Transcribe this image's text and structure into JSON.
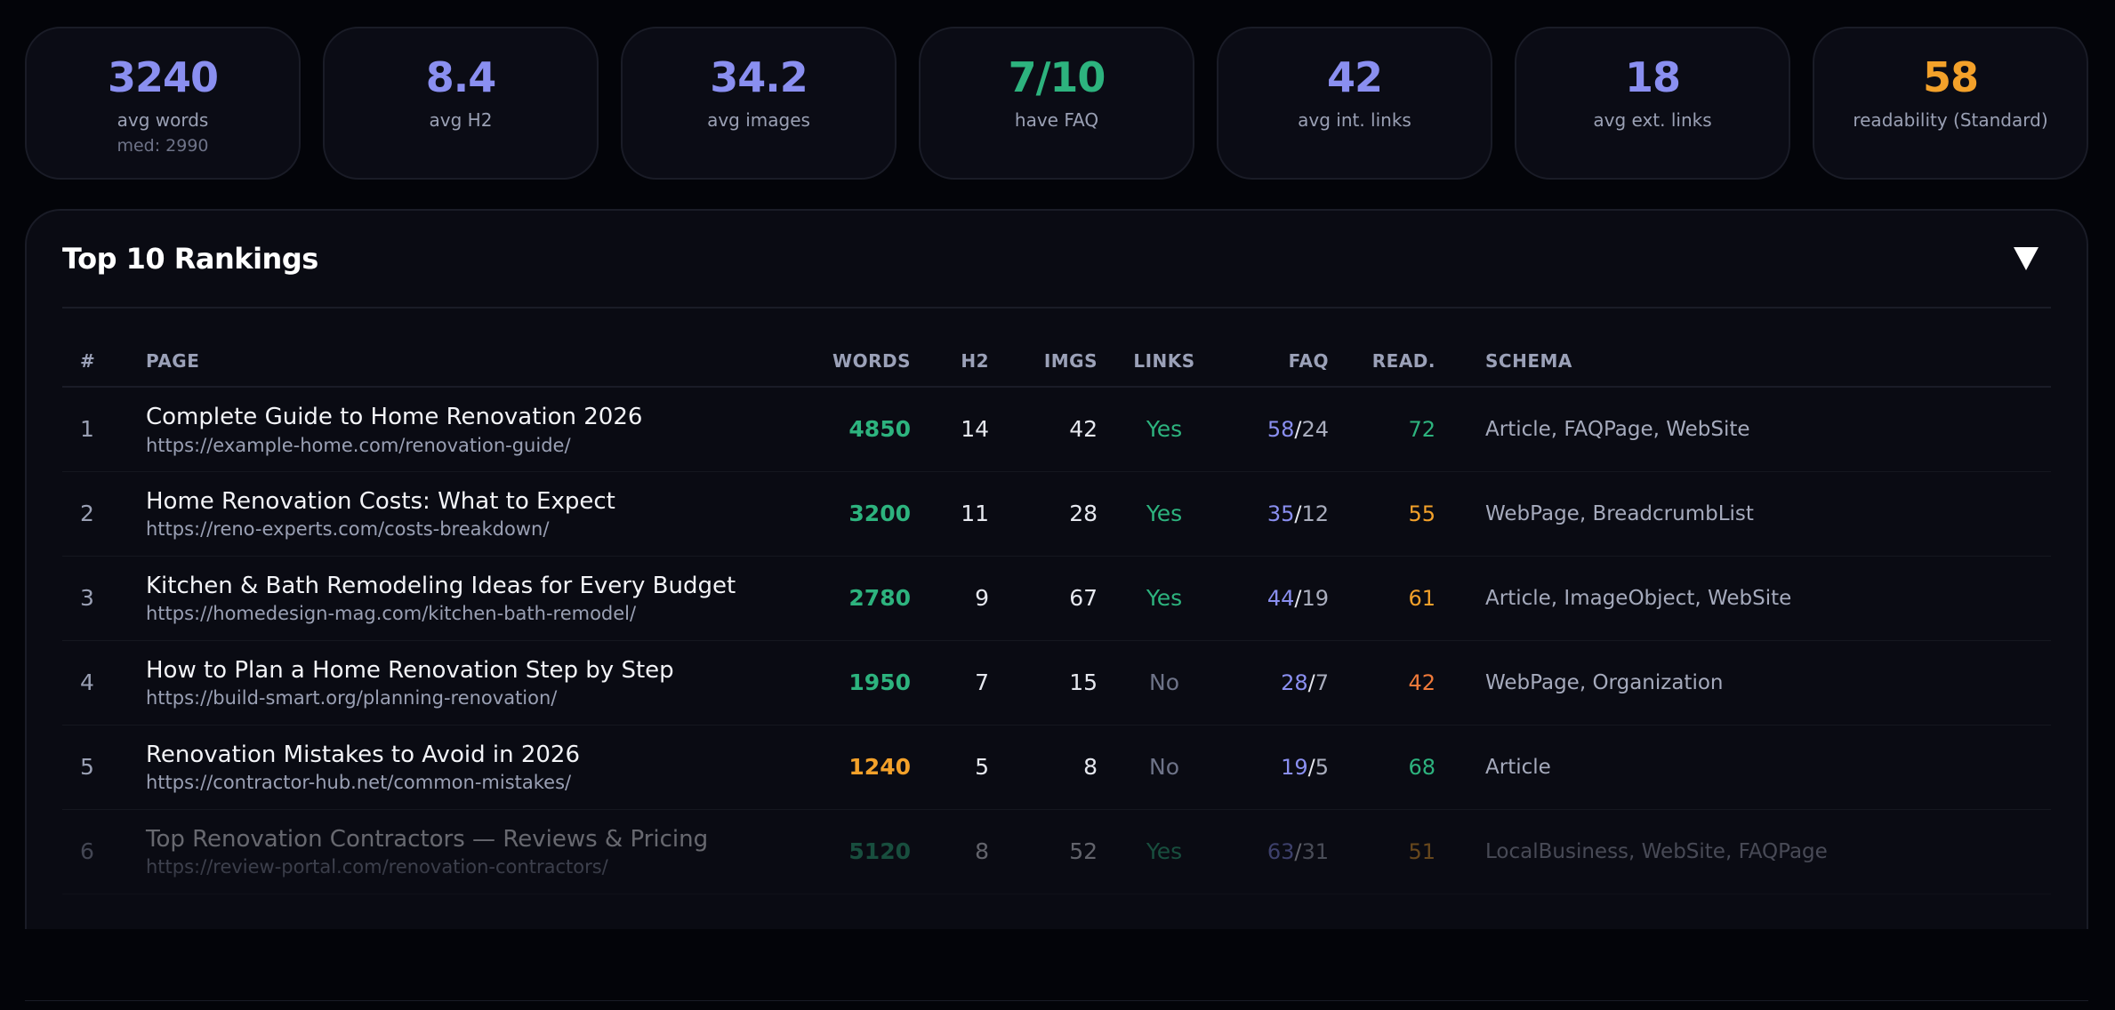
{
  "colors": {
    "accent": "#8a8ff0",
    "green": "#2db37e",
    "orange": "#f3a12a",
    "orange_red": "#f07a3a",
    "muted": "#6e7388"
  },
  "stats": [
    {
      "value": "3240",
      "label": "avg words",
      "sub": "med: 2990",
      "color": "#8a8ff0"
    },
    {
      "value": "8.4",
      "label": "avg H2",
      "sub": "",
      "color": "#8a8ff0"
    },
    {
      "value": "34.2",
      "label": "avg images",
      "sub": "",
      "color": "#8a8ff0"
    },
    {
      "value": "7/10",
      "label": "have FAQ",
      "sub": "",
      "color": "#2db37e"
    },
    {
      "value": "42",
      "label": "avg int. links",
      "sub": "",
      "color": "#8a8ff0"
    },
    {
      "value": "18",
      "label": "avg ext. links",
      "sub": "",
      "color": "#8a8ff0"
    },
    {
      "value": "58",
      "label": "readability (Standard)",
      "sub": "",
      "color": "#f3a12a"
    }
  ],
  "rankings": {
    "title": "Top 10 Rankings",
    "toggle_icon": "caret-down-icon",
    "columns": [
      "#",
      "PAGE",
      "WORDS",
      "H2",
      "IMGS",
      "LINKS",
      "FAQ",
      "READ.",
      "SCHEMA"
    ],
    "rows": [
      {
        "rank": "1",
        "title": "Complete Guide to Home Renovation 2026",
        "url": "https://example-home.com/renovation-guide/",
        "words": "4850",
        "words_color": "#2db37e",
        "h2": "14",
        "imgs": "42",
        "links": "Yes",
        "links_color": "#2db37e",
        "faq_a": "58",
        "faq_b": "24",
        "read": "72",
        "read_color": "#2db37e",
        "schema": "Article, FAQPage, WebSite"
      },
      {
        "rank": "2",
        "title": "Home Renovation Costs: What to Expect",
        "url": "https://reno-experts.com/costs-breakdown/",
        "words": "3200",
        "words_color": "#2db37e",
        "h2": "11",
        "imgs": "28",
        "links": "Yes",
        "links_color": "#2db37e",
        "faq_a": "35",
        "faq_b": "12",
        "read": "55",
        "read_color": "#f3a12a",
        "schema": "WebPage, BreadcrumbList"
      },
      {
        "rank": "3",
        "title": "Kitchen & Bath Remodeling Ideas for Every Budget",
        "url": "https://homedesign-mag.com/kitchen-bath-remodel/",
        "words": "2780",
        "words_color": "#2db37e",
        "h2": "9",
        "imgs": "67",
        "links": "Yes",
        "links_color": "#2db37e",
        "faq_a": "44",
        "faq_b": "19",
        "read": "61",
        "read_color": "#f3a12a",
        "schema": "Article, ImageObject, WebSite"
      },
      {
        "rank": "4",
        "title": "How to Plan a Home Renovation Step by Step",
        "url": "https://build-smart.org/planning-renovation/",
        "words": "1950",
        "words_color": "#2db37e",
        "h2": "7",
        "imgs": "15",
        "links": "No",
        "links_color": "#6e7388",
        "faq_a": "28",
        "faq_b": "7",
        "read": "42",
        "read_color": "#f07a3a",
        "schema": "WebPage, Organization"
      },
      {
        "rank": "5",
        "title": "Renovation Mistakes to Avoid in 2026",
        "url": "https://contractor-hub.net/common-mistakes/",
        "words": "1240",
        "words_color": "#f3a12a",
        "h2": "5",
        "imgs": "8",
        "links": "No",
        "links_color": "#6e7388",
        "faq_a": "19",
        "faq_b": "5",
        "read": "68",
        "read_color": "#2db37e",
        "schema": "Article"
      },
      {
        "rank": "6",
        "title": "Top Renovation Contractors — Reviews & Pricing",
        "url": "https://review-portal.com/renovation-contractors/",
        "words": "5120",
        "words_color": "#2db37e",
        "h2": "8",
        "imgs": "52",
        "links": "Yes",
        "links_color": "#2db37e",
        "faq_a": "63",
        "faq_b": "31",
        "read": "51",
        "read_color": "#f3a12a",
        "schema": "LocalBusiness, WebSite, FAQPage"
      }
    ]
  }
}
